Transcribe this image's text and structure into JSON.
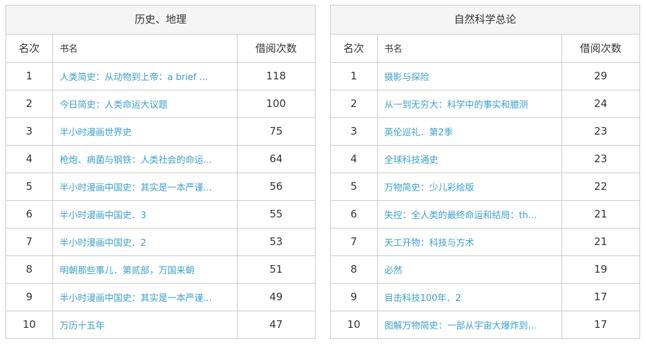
{
  "panels": [
    {
      "title": "历史、地理",
      "headers": {
        "rank": "名次",
        "title": "书名",
        "count": "借阅次数"
      },
      "rows": [
        {
          "rank": "1",
          "title": "人类简史：从动物到上帝：a brief ...",
          "count": "118"
        },
        {
          "rank": "2",
          "title": "今日简史：人类命运大议题",
          "count": "100"
        },
        {
          "rank": "3",
          "title": "半小时漫画世界史",
          "count": "75"
        },
        {
          "rank": "4",
          "title": "枪炮、病菌与钢铁：人类社会的命运...",
          "count": "64"
        },
        {
          "rank": "5",
          "title": "半小时漫画中国史：其实是一本严谨...",
          "count": "56"
        },
        {
          "rank": "6",
          "title": "半小时漫画中国史．3",
          "count": "55"
        },
        {
          "rank": "7",
          "title": "半小时漫画中国史．2",
          "count": "53"
        },
        {
          "rank": "8",
          "title": "明朝那些事儿．第贰部，万国来朝",
          "count": "51"
        },
        {
          "rank": "9",
          "title": "半小时漫画中国史：其实是一本严谨...",
          "count": "49"
        },
        {
          "rank": "10",
          "title": "万历十五年",
          "count": "47"
        }
      ]
    },
    {
      "title": "自然科学总论",
      "headers": {
        "rank": "名次",
        "title": "书名",
        "count": "借阅次数"
      },
      "rows": [
        {
          "rank": "1",
          "title": "摄影与探险",
          "count": "29"
        },
        {
          "rank": "2",
          "title": "从一到无穷大：科学中的事实和臆测",
          "count": "24"
        },
        {
          "rank": "3",
          "title": "英伦巡礼．第2季",
          "count": "23"
        },
        {
          "rank": "4",
          "title": "全球科技通史",
          "count": "23"
        },
        {
          "rank": "5",
          "title": "万物简史：少儿彩绘版",
          "count": "22"
        },
        {
          "rank": "6",
          "title": "失控：全人类的最终命运和结局：th...",
          "count": "21"
        },
        {
          "rank": "7",
          "title": "天工开物：科技与方术",
          "count": "21"
        },
        {
          "rank": "8",
          "title": "必然",
          "count": "19"
        },
        {
          "rank": "9",
          "title": "目击科技100年．2",
          "count": "17"
        },
        {
          "rank": "10",
          "title": "图解万物简史：一部从宇宙大爆炸到...",
          "count": "17"
        }
      ]
    }
  ],
  "colors": {
    "link": "#3aa0c8",
    "border": "#cccccc",
    "title_bg": "#f5f5f5",
    "text": "#333333"
  }
}
